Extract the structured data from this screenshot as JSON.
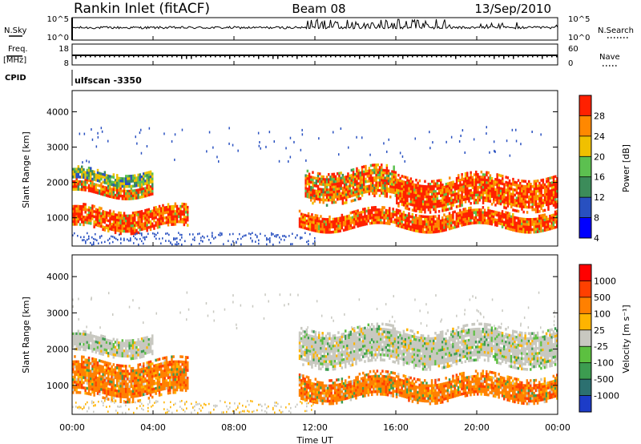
{
  "header": {
    "station": "Rankin Inlet (fitACF)",
    "beam": "Beam 08",
    "date": "13/Sep/2010"
  },
  "left_labels": {
    "nsky": "N.Sky",
    "nsky_ticks": [
      "10^5",
      "10^0"
    ],
    "freq": "Freq.",
    "freq_unit": "[MHz]",
    "freq_ticks": [
      "18",
      "8"
    ],
    "cpid": "CPID"
  },
  "right_labels": {
    "nsearch": "N.Search",
    "nsearch_ticks": [
      "10^5",
      "10^0"
    ],
    "nave": "Nave",
    "nave_ticks": [
      "60",
      "0"
    ]
  },
  "cpid_value": "ulfscan -3350",
  "x_axis": {
    "label": "Time UT",
    "ticks": [
      "00:00",
      "04:00",
      "08:00",
      "12:00",
      "16:00",
      "20:00",
      "00:00"
    ]
  },
  "y_axis": {
    "label": "Slant Range [km]",
    "ticks": [
      "1000",
      "2000",
      "3000",
      "4000"
    ]
  },
  "power_scale": {
    "label": "Power [dB]",
    "ticks": [
      "4",
      "8",
      "12",
      "16",
      "20",
      "24",
      "28"
    ],
    "colors": [
      "#0000ff",
      "#2850c0",
      "#3c8c5a",
      "#5cc050",
      "#f0c000",
      "#ff8800",
      "#ff2000"
    ]
  },
  "velocity_scale": {
    "label": "Velocity [m s⁻¹]",
    "ticks": [
      "1000",
      "500",
      "100",
      "25",
      "-25",
      "-100",
      "-500",
      "-1000"
    ],
    "colors": [
      "#1c3cc8",
      "#2c7070",
      "#3c9c50",
      "#5cc040",
      "#c8c8c0",
      "#ffb400",
      "#ff8000",
      "#ff4000",
      "#ff0000"
    ]
  },
  "chart_data": {
    "type": "heatmap",
    "panels": [
      {
        "name": "Power",
        "xlabel": "Time UT",
        "ylabel": "Slant Range [km]",
        "xlim_hours": [
          0,
          24
        ],
        "ylim_km": [
          200,
          4600
        ],
        "regions": [
          {
            "t0": 0.0,
            "t1": 5.7,
            "r0": 700,
            "r1": 1300,
            "level": "high"
          },
          {
            "t0": 0.0,
            "t1": 4.0,
            "r0": 1650,
            "r1": 2000,
            "level": "mid"
          },
          {
            "t0": 0.0,
            "t1": 4.0,
            "r0": 2000,
            "r1": 2350,
            "level": "low"
          },
          {
            "t0": 11.2,
            "t1": 24.0,
            "r0": 700,
            "r1": 1200,
            "level": "high"
          },
          {
            "t0": 11.5,
            "t1": 16.0,
            "r0": 1500,
            "r1": 2400,
            "level": "mid"
          },
          {
            "t0": 16.0,
            "t1": 24.0,
            "r0": 1300,
            "r1": 2200,
            "level": "high"
          }
        ]
      },
      {
        "name": "Velocity",
        "xlabel": "Time UT",
        "ylabel": "Slant Range [km]",
        "xlim_hours": [
          0,
          24
        ],
        "ylim_km": [
          200,
          4600
        ],
        "regions": [
          {
            "t0": 0.0,
            "t1": 5.7,
            "r0": 700,
            "r1": 1700,
            "level": "negative"
          },
          {
            "t0": 0.0,
            "t1": 4.0,
            "r0": 1900,
            "r1": 2400,
            "level": "near-zero"
          },
          {
            "t0": 11.2,
            "t1": 24.0,
            "r0": 600,
            "r1": 1300,
            "level": "negative"
          },
          {
            "t0": 11.2,
            "t1": 24.0,
            "r0": 1600,
            "r1": 2600,
            "level": "near-zero"
          }
        ]
      }
    ]
  }
}
